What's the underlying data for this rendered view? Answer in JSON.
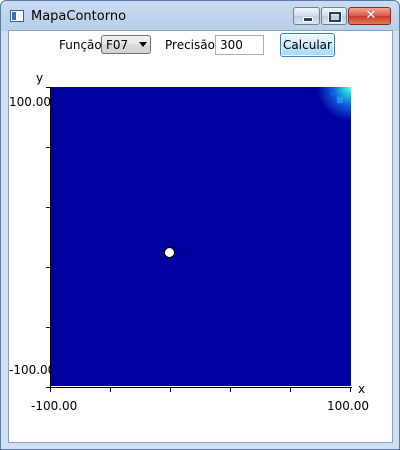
{
  "window": {
    "title": "MapaContorno",
    "close_glyph": "✕"
  },
  "controls": {
    "function_label": "Função",
    "function_value": "F07",
    "precision_label": "Precisão",
    "precision_value": "300",
    "calculate_label": "Calcular"
  },
  "plot": {
    "y_axis_label": "y",
    "x_axis_label": "x",
    "y_max_label": "100.00",
    "y_min_label": "-100.00",
    "x_min_label": "-100.00",
    "x_max_label": "100.00",
    "background_color": "#0000a0",
    "highlight_color": "#7fffd4"
  }
}
